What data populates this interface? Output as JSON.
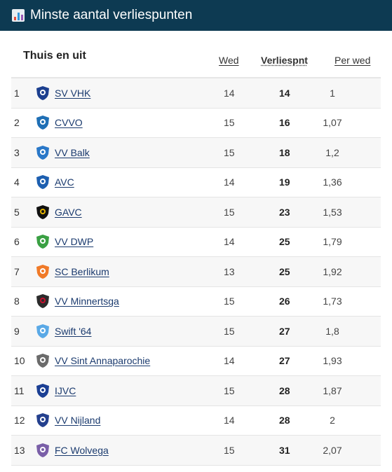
{
  "header": {
    "title": "Minste aantal verliespunten",
    "icon": "bar-chart-icon"
  },
  "table": {
    "scope": "Thuis en uit",
    "columns": {
      "played": "Wed",
      "lost_points": "Verliespnt",
      "per_match": "Per wed"
    },
    "rows": [
      {
        "pos": "1",
        "team": "SV VHK",
        "played": "14",
        "lost_points": "14",
        "per_match": "1",
        "logo_color": "#1c3f8f",
        "logo_accent": "#ffffff"
      },
      {
        "pos": "2",
        "team": "CVVO",
        "played": "15",
        "lost_points": "16",
        "per_match": "1,07",
        "logo_color": "#1f6fb5",
        "logo_accent": "#ffffff"
      },
      {
        "pos": "3",
        "team": "VV Balk",
        "played": "15",
        "lost_points": "18",
        "per_match": "1,2",
        "logo_color": "#2a78c8",
        "logo_accent": "#ffffff"
      },
      {
        "pos": "4",
        "team": "AVC",
        "played": "14",
        "lost_points": "19",
        "per_match": "1,36",
        "logo_color": "#1d5fb0",
        "logo_accent": "#ffffff"
      },
      {
        "pos": "5",
        "team": "GAVC",
        "played": "15",
        "lost_points": "23",
        "per_match": "1,53",
        "logo_color": "#111111",
        "logo_accent": "#e5b400"
      },
      {
        "pos": "6",
        "team": "VV DWP",
        "played": "14",
        "lost_points": "25",
        "per_match": "1,79",
        "logo_color": "#3aa043",
        "logo_accent": "#ffffff"
      },
      {
        "pos": "7",
        "team": "SC Berlikum",
        "played": "13",
        "lost_points": "25",
        "per_match": "1,92",
        "logo_color": "#f07a28",
        "logo_accent": "#ffffff"
      },
      {
        "pos": "8",
        "team": "VV Minnertsga",
        "played": "15",
        "lost_points": "26",
        "per_match": "1,73",
        "logo_color": "#2b2b2b",
        "logo_accent": "#c8102e"
      },
      {
        "pos": "9",
        "team": "Swift '64",
        "played": "15",
        "lost_points": "27",
        "per_match": "1,8",
        "logo_color": "#5aa9e6",
        "logo_accent": "#ffffff"
      },
      {
        "pos": "10",
        "team": "VV Sint Annaparochie",
        "played": "14",
        "lost_points": "27",
        "per_match": "1,93",
        "logo_color": "#6b6b6b",
        "logo_accent": "#ffffff"
      },
      {
        "pos": "11",
        "team": "IJVC",
        "played": "15",
        "lost_points": "28",
        "per_match": "1,87",
        "logo_color": "#1b3f94",
        "logo_accent": "#ffffff"
      },
      {
        "pos": "12",
        "team": "VV Nijland",
        "played": "14",
        "lost_points": "28",
        "per_match": "2",
        "logo_color": "#24408e",
        "logo_accent": "#ffffff"
      },
      {
        "pos": "13",
        "team": "FC Wolvega",
        "played": "15",
        "lost_points": "31",
        "per_match": "2,07",
        "logo_color": "#7a5fa8",
        "logo_accent": "#ffffff"
      }
    ]
  }
}
